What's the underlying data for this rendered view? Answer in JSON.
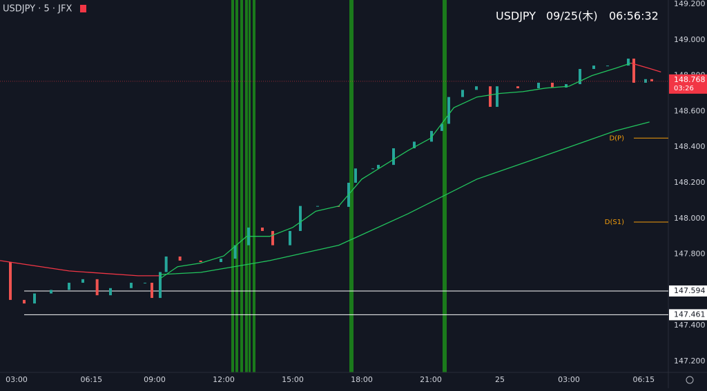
{
  "chart_data": {
    "type": "line",
    "header": {
      "symbol": "USDJPY · 5 · JFX",
      "pair": "USDJPY",
      "date": "09/25(木)",
      "time": "06:56:32"
    },
    "xlim": [
      2.28,
      31.32
    ],
    "xticks": [
      {
        "value": 3,
        "label": "03:00"
      },
      {
        "value": 6.25,
        "label": "06:15"
      },
      {
        "value": 9,
        "label": "09:00"
      },
      {
        "value": 12,
        "label": "12:00"
      },
      {
        "value": 15,
        "label": "15:00"
      },
      {
        "value": 18,
        "label": "18:00"
      },
      {
        "value": 21,
        "label": "21:00"
      },
      {
        "value": 24,
        "label": "25"
      },
      {
        "value": 27,
        "label": "03:00"
      },
      {
        "value": 30.25,
        "label": "06:15"
      }
    ],
    "ylim": [
      147.18,
      149.2
    ],
    "yticks": [
      {
        "value": 147.2,
        "label": "147.200"
      },
      {
        "value": 147.4,
        "label": "147.400"
      },
      {
        "value": 147.6,
        "label": "147.600"
      },
      {
        "value": 147.8,
        "label": "147.800"
      },
      {
        "value": 148,
        "label": "148.000"
      },
      {
        "value": 148.2,
        "label": "148.200"
      },
      {
        "value": 148.4,
        "label": "148.400"
      },
      {
        "value": 148.6,
        "label": "148.600"
      },
      {
        "value": 148.8,
        "label": "148.800"
      },
      {
        "value": 149,
        "label": "149.000"
      },
      {
        "value": 149.2,
        "label": "149.200"
      }
    ],
    "series": [
      {
        "color": "#b2b5be",
        "x": [
          2.28,
          2.73,
          3.33,
          3.78,
          4.5,
          5.28,
          5.88,
          6.5,
          7.08,
          7.98,
          8.58,
          8.88,
          9.24,
          9.5,
          10.1,
          11,
          11.88,
          12.5,
          13.08,
          13.68,
          14.13,
          14.88,
          15.33,
          16.08,
          16.98,
          17.43,
          17.73,
          18.48,
          18.72,
          19.38,
          20.28,
          21.03,
          21.48,
          21.78,
          22.38,
          22.98,
          23.58,
          23.88,
          24.78,
          25.68,
          26.28,
          26.88,
          27.48,
          28.08,
          28.68,
          29.58,
          29.82,
          30.33,
          30.6
        ],
        "values": [
          147.756,
          147.544,
          147.524,
          147.58,
          147.6,
          147.64,
          147.66,
          147.57,
          147.61,
          147.64,
          147.64,
          147.555,
          147.7,
          147.787,
          147.764,
          147.756,
          147.775,
          147.85,
          147.949,
          147.93,
          147.85,
          147.93,
          148.07,
          148.07,
          148.065,
          148.2,
          148.28,
          148.28,
          148.3,
          148.393,
          148.43,
          148.49,
          148.53,
          148.68,
          148.72,
          148.74,
          148.625,
          148.74,
          148.729,
          148.76,
          148.733,
          148.752,
          148.837,
          148.856,
          148.856,
          148.895,
          148.76,
          148.78,
          148.768
        ]
      },
      {
        "color": "#22c55e",
        "x": [
          9.2,
          10,
          11,
          12,
          13,
          14,
          15,
          16,
          17,
          18,
          19,
          20,
          21,
          22,
          23,
          24,
          25,
          26,
          27,
          28,
          29,
          29.7
        ],
        "values": [
          147.66,
          147.73,
          147.75,
          147.79,
          147.9,
          147.9,
          147.95,
          148.04,
          148.07,
          148.22,
          148.3,
          148.38,
          148.45,
          148.62,
          148.68,
          148.7,
          148.71,
          148.73,
          148.74,
          148.8,
          148.84,
          148.87
        ]
      },
      {
        "color": "#22c55e",
        "x": [
          9.2,
          11,
          14,
          17,
          20,
          23,
          26,
          29,
          30.5
        ],
        "values": [
          147.686,
          147.698,
          147.764,
          147.85,
          148.026,
          148.22,
          148.354,
          148.49,
          148.54
        ]
      },
      {
        "color": "#f23645",
        "x": [
          2.28,
          5.28,
          8.28,
          9.2
        ],
        "values": [
          147.764,
          147.706,
          147.679,
          147.679
        ]
      },
      {
        "color": "#f23645",
        "x": [
          29.7,
          30.5,
          31
        ],
        "values": [
          148.87,
          148.84,
          148.82
        ]
      }
    ],
    "levels": [
      {
        "value": 147.594,
        "color": "#ffffff"
      },
      {
        "value": 147.461,
        "color": "#ffffff"
      }
    ],
    "pivots": [
      {
        "name": "D(P)",
        "value": 148.45,
        "color": "#f59e0b"
      },
      {
        "name": "D(S1)",
        "value": 147.98,
        "color": "#f59e0b"
      }
    ],
    "last_price": 148.768,
    "countdown": "03:26"
  }
}
